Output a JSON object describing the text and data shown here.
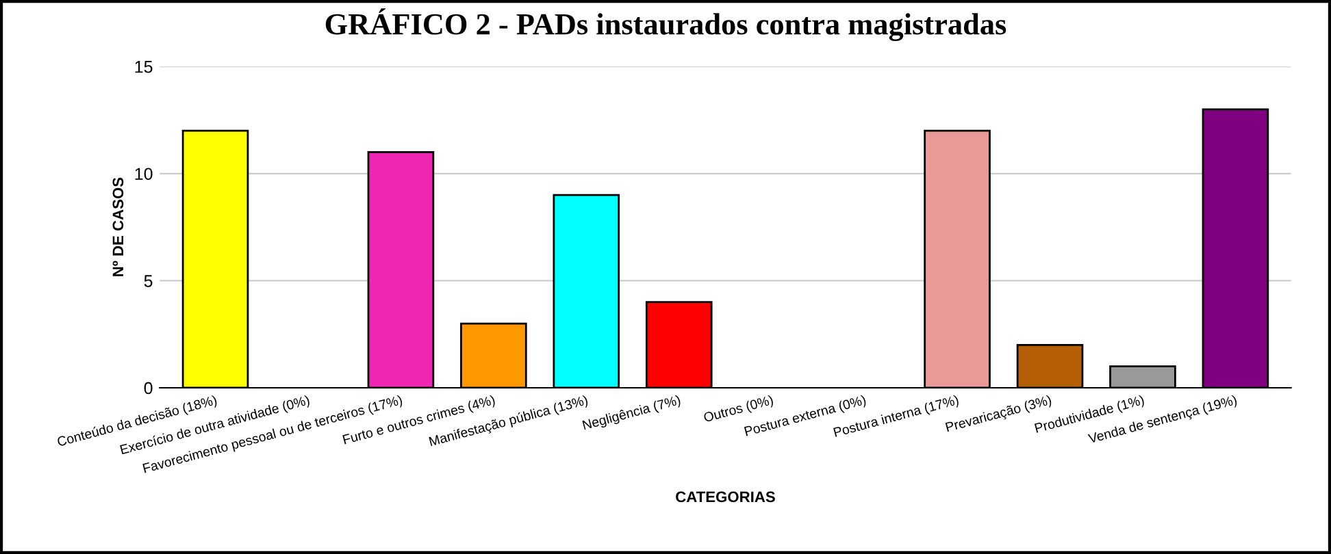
{
  "chart_data": {
    "type": "bar",
    "title": "GRÁFICO 2 - PADs instaurados contra magistradas",
    "xlabel": "CATEGORIAS",
    "ylabel": "Nº DE CASOS",
    "categories": [
      "Conteúdo da decisão (18%)",
      "Exercício de outra atividade (0%)",
      "Favorecimento pessoal ou de terceiros (17%)",
      "Furto e outros crimes (4%)",
      "Manifestação pública (13%)",
      "Negligência (7%)",
      "Outros (0%)",
      "Postura externa (0%)",
      "Postura interna (17%)",
      "Prevaricação (3%)",
      "Produtividade (1%)",
      "Venda de sentença (19%)"
    ],
    "values": [
      12,
      0,
      11,
      3,
      9,
      4,
      0,
      0,
      12,
      2,
      1,
      13
    ],
    "colors": [
      "#ffff00",
      null,
      "#f027b4",
      "#ff9900",
      "#00ffff",
      "#ff0000",
      null,
      null,
      "#ea9999",
      "#b45f06",
      "#999999",
      "#800080"
    ],
    "ylim": [
      0,
      15
    ],
    "yticks": [
      0,
      5,
      10,
      15
    ],
    "grid": "y"
  }
}
